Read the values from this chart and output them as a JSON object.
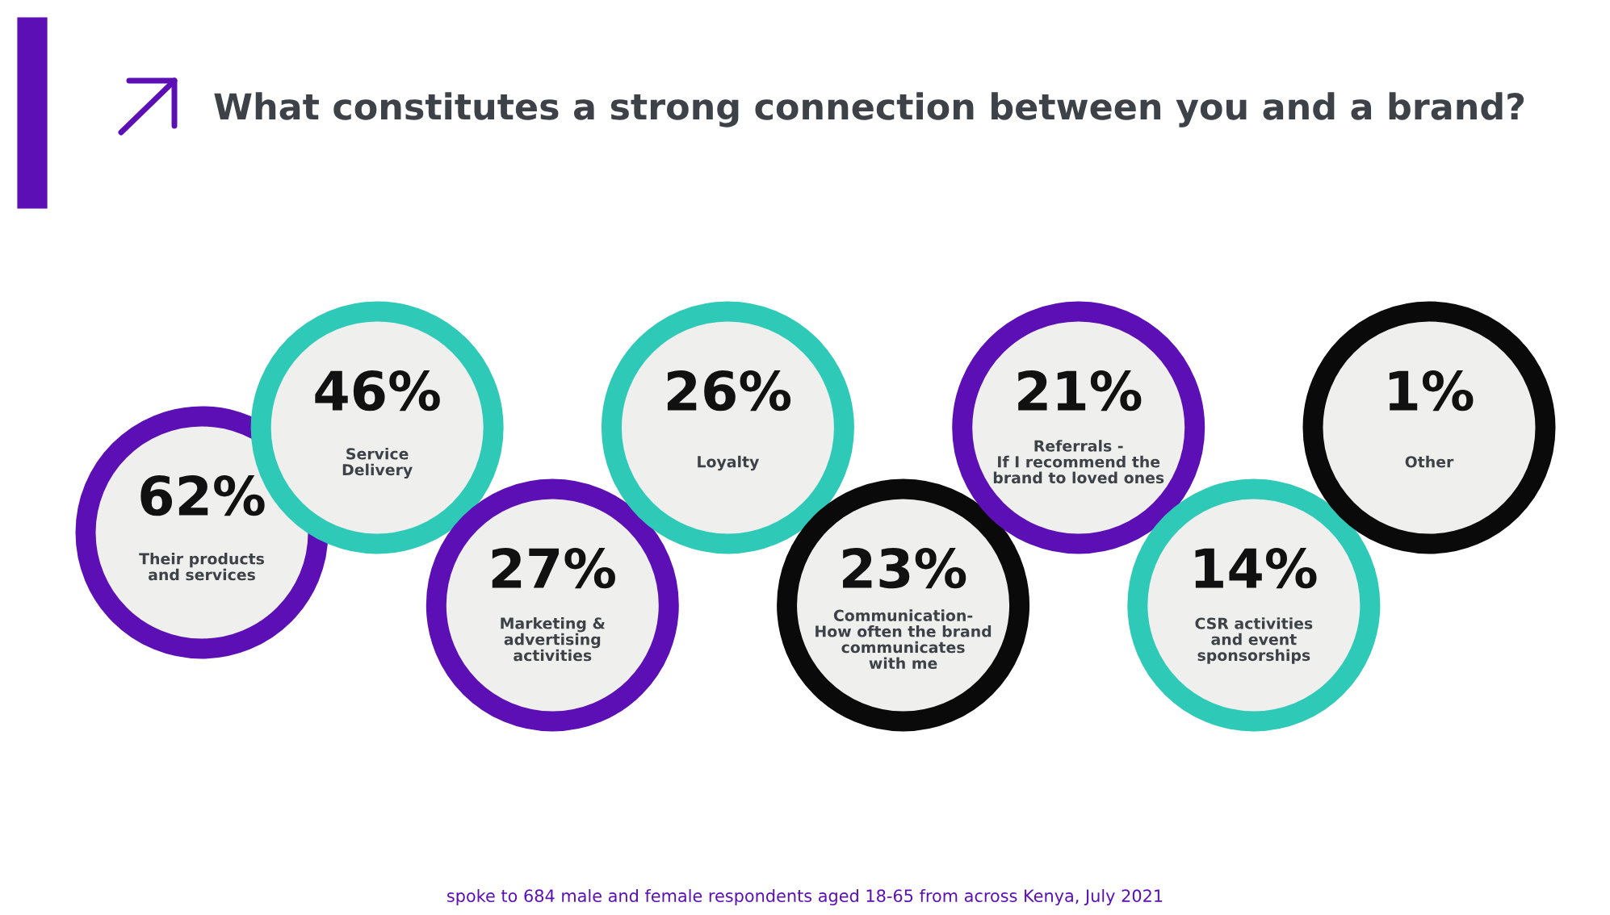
{
  "chart_data": {
    "type": "other",
    "title": "What constitutes a strong connection between you and a brand?",
    "categories": [
      "Their products\nand services",
      "Service\nDelivery",
      "Marketing &\nadvertising\nactivities",
      "Loyalty",
      "Communication-\nHow often the brand\ncommunicates\nwith me",
      "Referrals -\nIf I recommend the\nbrand to loved ones",
      "CSR activities\nand event\nsponsorships",
      "Other"
    ],
    "values": [
      62,
      46,
      27,
      26,
      23,
      21,
      14,
      1
    ],
    "value_labels": [
      "62%",
      "46%",
      "27%",
      "26%",
      "23%",
      "21%",
      "14%",
      "1%"
    ],
    "colors": [
      "#5b0fb5",
      "#2ec9b7",
      "#5b0fb5",
      "#2ec9b7",
      "#0a0a0a",
      "#5b0fb5",
      "#2ec9b7",
      "#0a0a0a"
    ],
    "annotations": [
      "spoke to 684 male and female respondents aged 18-65 from across Kenya, July 2021"
    ]
  }
}
